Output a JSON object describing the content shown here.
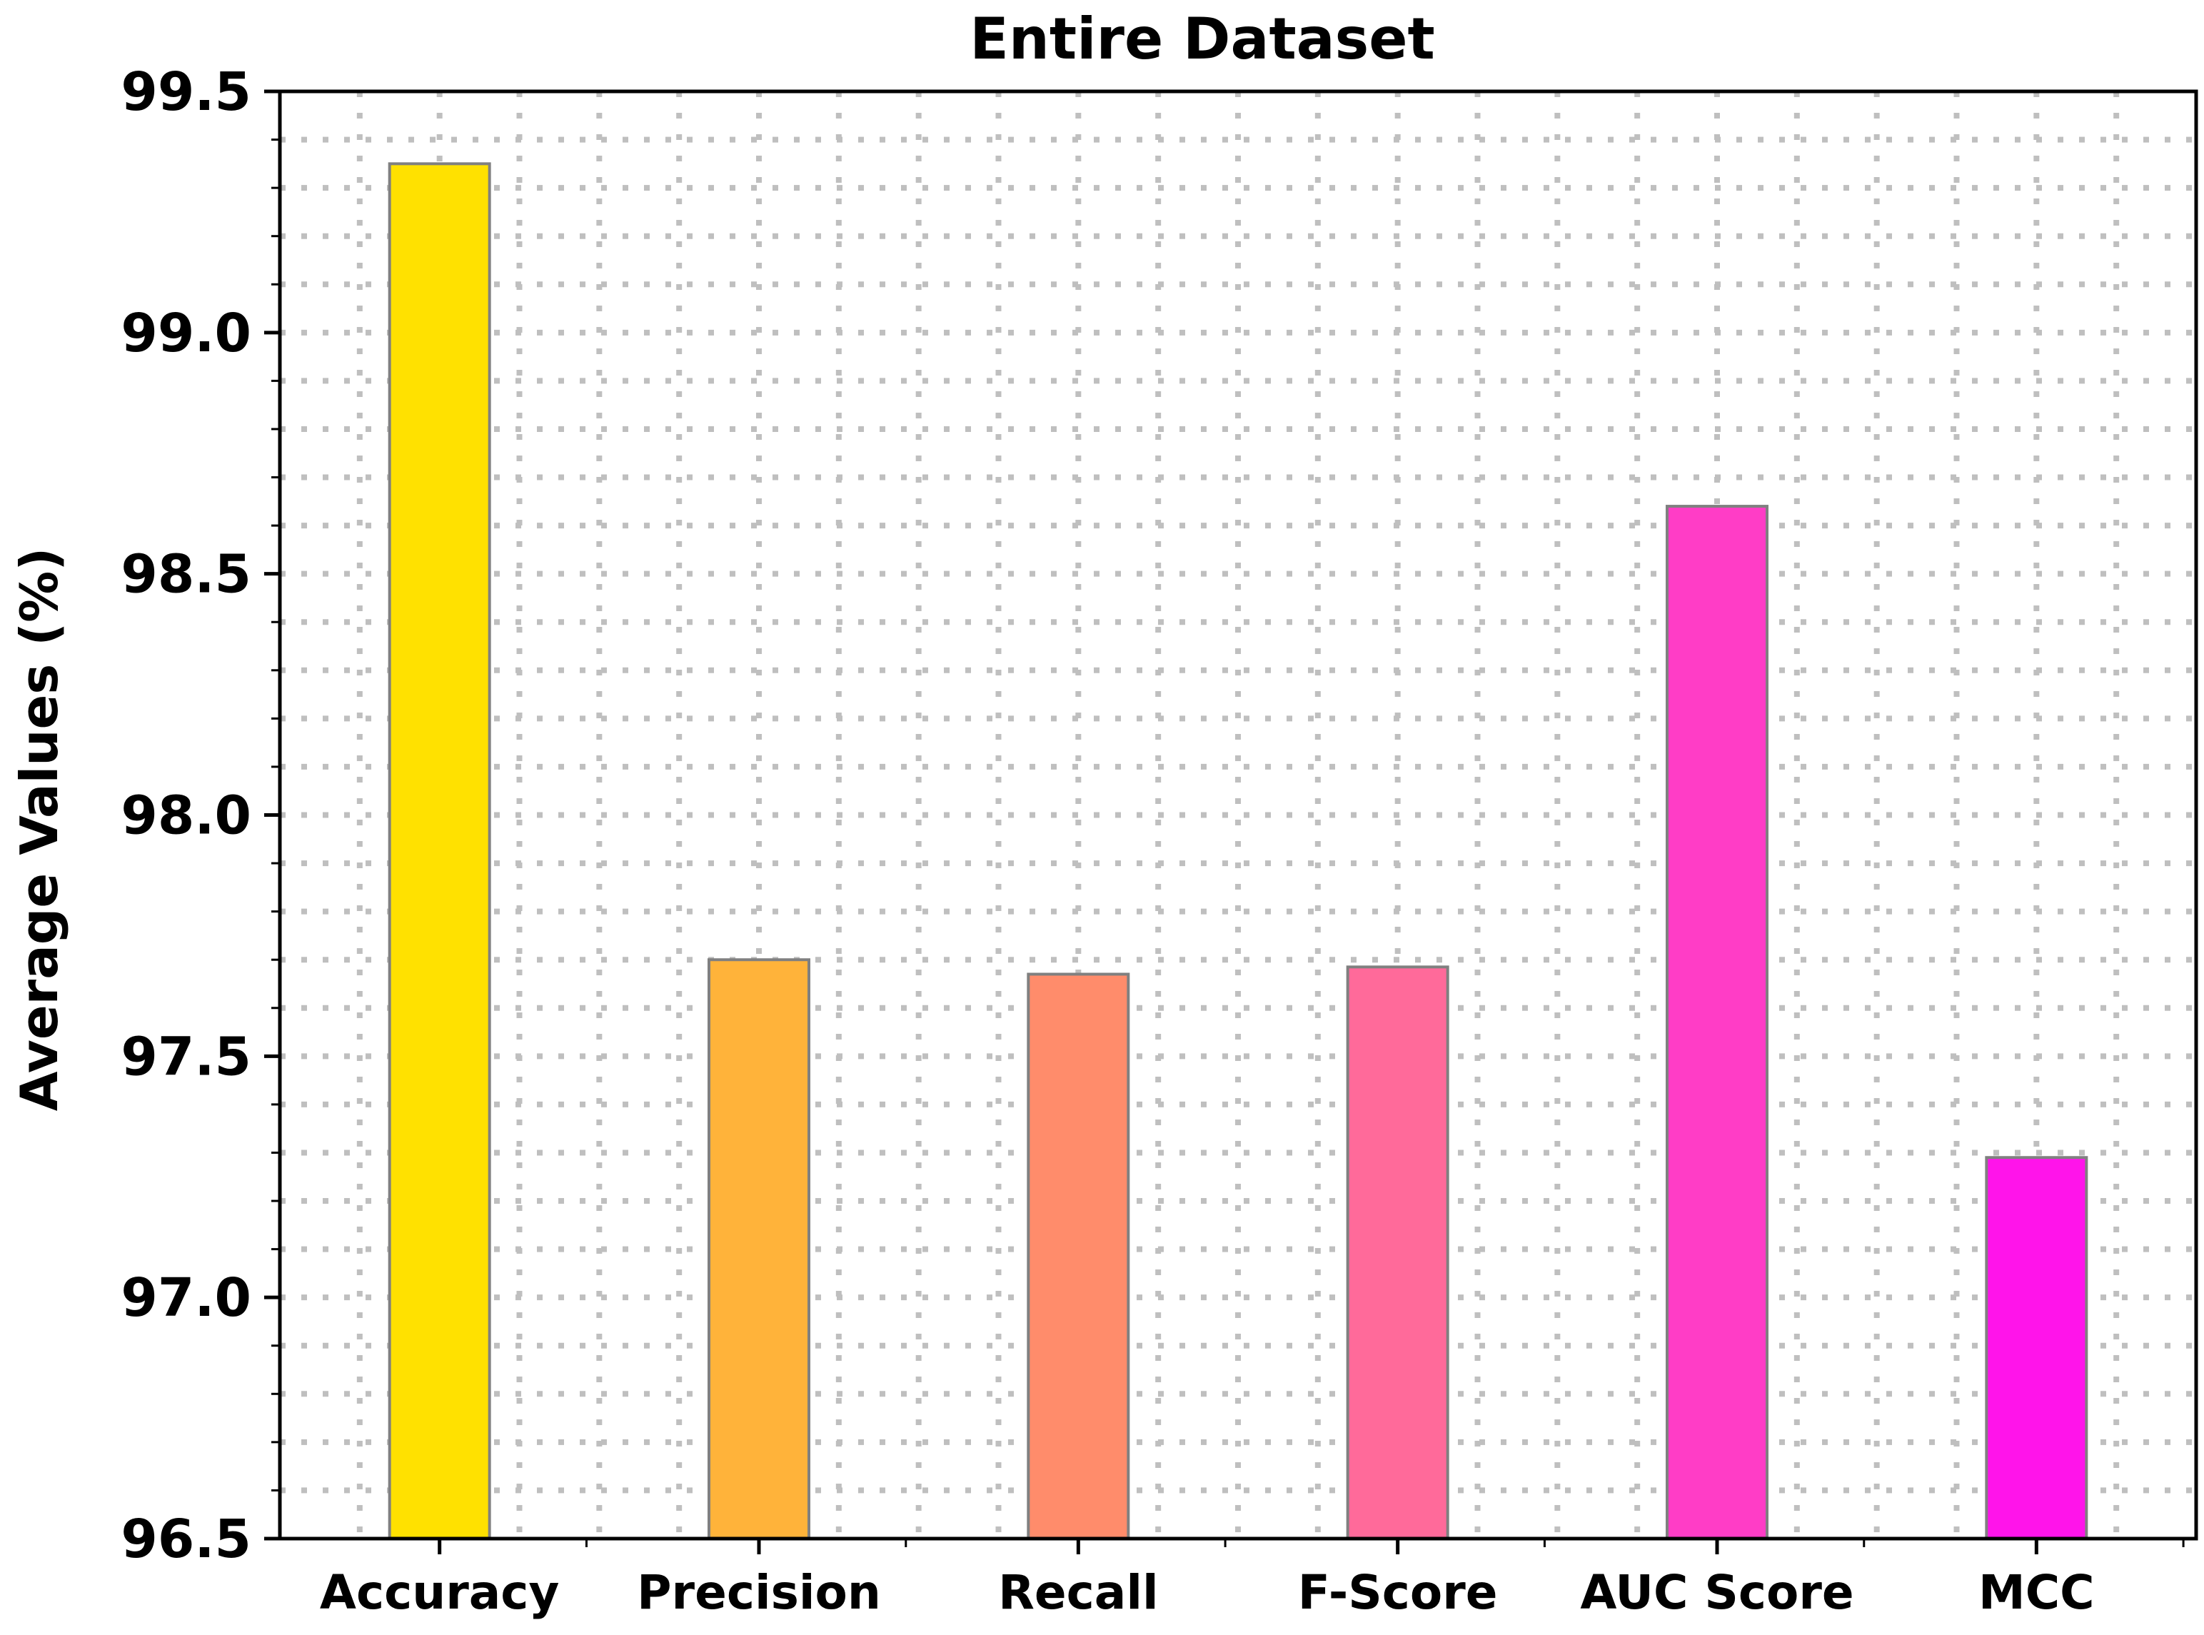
{
  "chart_data": {
    "type": "bar",
    "title": "Entire Dataset",
    "xlabel": "",
    "ylabel": "Average Values (%)",
    "categories": [
      "Accuracy",
      "Precision",
      "Recall",
      "F-Score",
      "AUC Score",
      "MCC"
    ],
    "values": [
      99.35,
      97.7,
      97.67,
      97.685,
      98.64,
      97.29
    ],
    "ylim": [
      96.5,
      99.5
    ],
    "yticks": [
      "96.5",
      "97.0",
      "97.5",
      "98.0",
      "98.5",
      "99.0",
      "99.5"
    ],
    "grid": true,
    "grid_style": "dotted",
    "legend": "none",
    "colors": [
      "#FFE100",
      "#FFB33A",
      "#FF8C6B",
      "#FF6A9A",
      "#FF3DC6",
      "#FF14EA"
    ],
    "bar_edge_color": "#808080",
    "grid_color": "#bfbfbf"
  }
}
